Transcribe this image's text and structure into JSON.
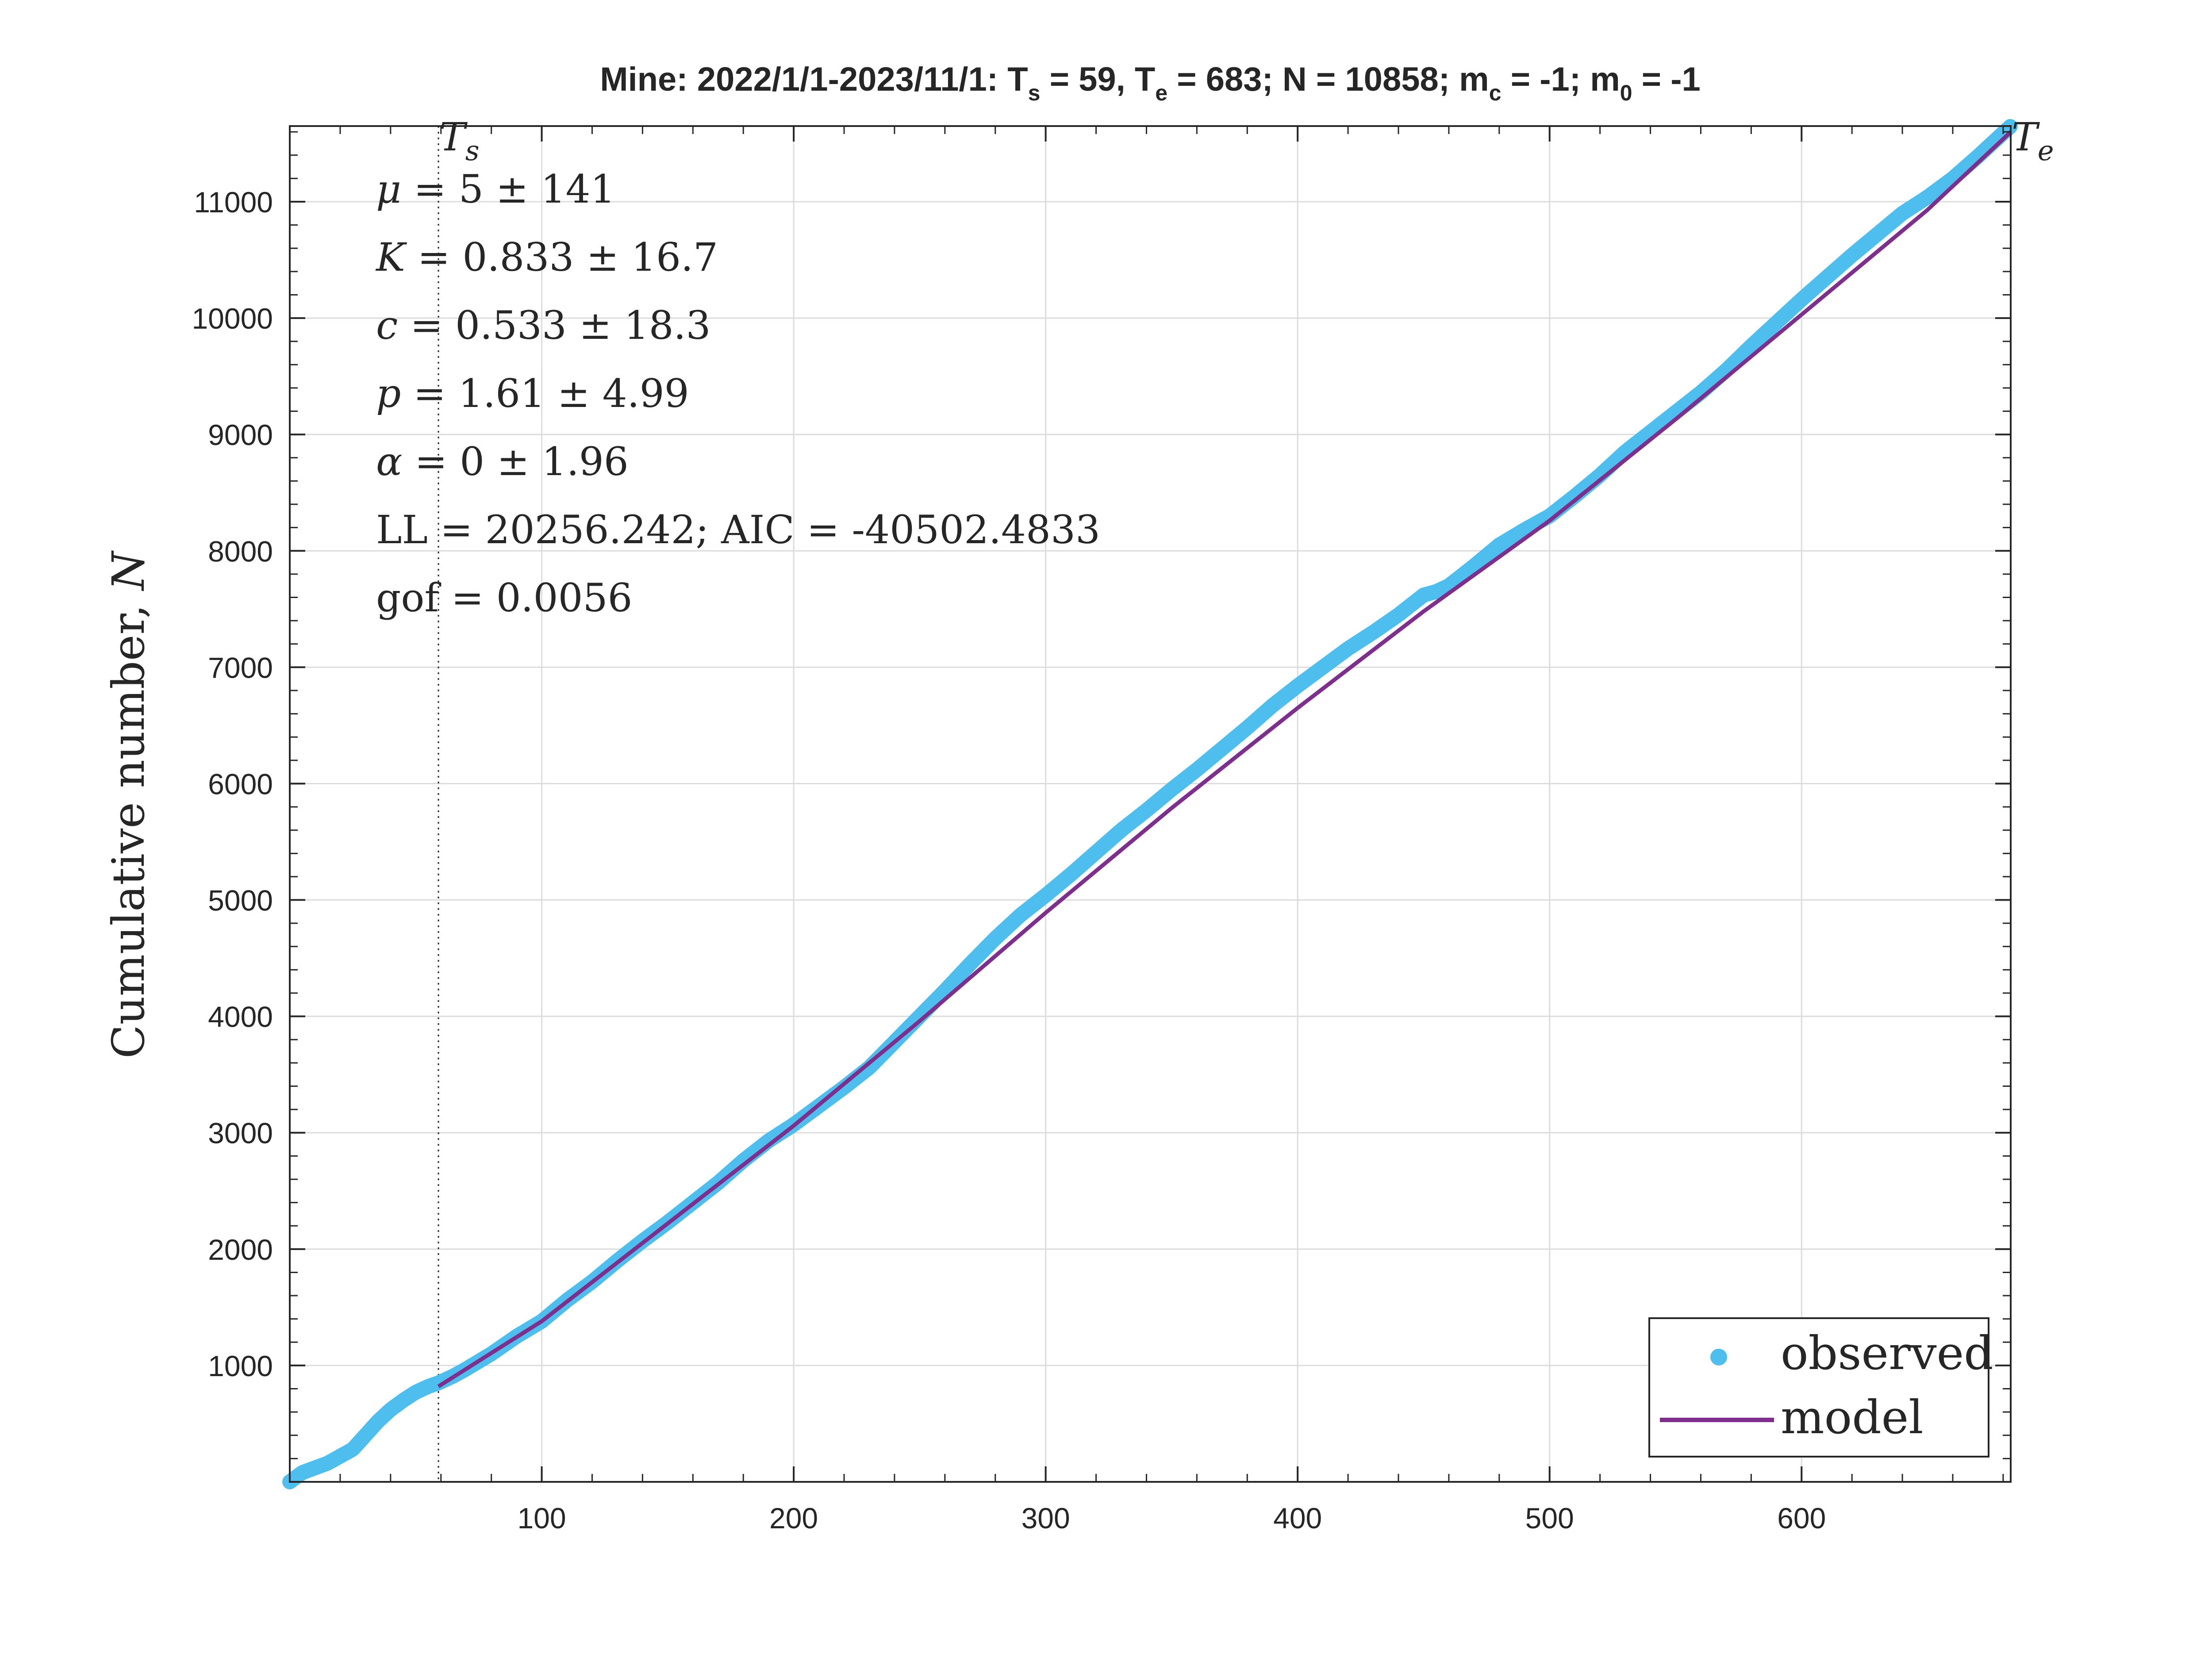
{
  "chart_data": {
    "type": "line",
    "title": {
      "prefix": "Mine: 2022/1/1-2023/11/1: T",
      "ts_sub": "s",
      "ts_val": " = 59, T",
      "te_sub": "e",
      "te_val": " = 683; N = 10858; m",
      "mc_sub": "c",
      "mc_val": " = -1; m",
      "m0_sub": "0",
      "m0_val": " = -1"
    },
    "xlabel": "",
    "ylabel": {
      "main": "Cumulative number, ",
      "var": "N"
    },
    "xlim": [
      0,
      683
    ],
    "ylim": [
      0,
      11650
    ],
    "x_ticks": [
      100,
      200,
      300,
      400,
      500,
      600
    ],
    "y_ticks": [
      1000,
      2000,
      3000,
      4000,
      5000,
      6000,
      7000,
      8000,
      9000,
      10000,
      11000
    ],
    "grid": true,
    "vlines": [
      {
        "x": 59,
        "label": "T",
        "label_sub": "s",
        "style": "dotted"
      }
    ],
    "end_label": {
      "label": "T",
      "label_sub": "e"
    },
    "annotations": [
      {
        "sym": "μ",
        "rest": " = 5 ± 141"
      },
      {
        "sym": "K",
        "rest": " = 0.833 ± 16.7"
      },
      {
        "sym": "c",
        "rest": " = 0.533 ± 18.3"
      },
      {
        "sym": "p",
        "rest": " = 1.61 ± 4.99"
      },
      {
        "sym": "α",
        "rest": " = 0 ± 1.96"
      },
      {
        "sym": "",
        "rest": "LL = 20256.242; AIC = -40502.4833"
      },
      {
        "sym": "",
        "rest": "gof = 0.0056"
      }
    ],
    "legend_position": "bottom-right",
    "series": [
      {
        "name": "observed",
        "style": "markers",
        "color": "#4DBEEE",
        "x": [
          0,
          5,
          10,
          15,
          20,
          25,
          30,
          35,
          40,
          45,
          50,
          55,
          59,
          65,
          70,
          80,
          90,
          100,
          110,
          120,
          130,
          140,
          150,
          160,
          170,
          180,
          190,
          200,
          210,
          220,
          230,
          240,
          250,
          260,
          270,
          280,
          290,
          300,
          310,
          320,
          330,
          340,
          350,
          360,
          370,
          380,
          390,
          400,
          410,
          420,
          430,
          440,
          450,
          455,
          460,
          470,
          480,
          490,
          500,
          510,
          520,
          530,
          540,
          550,
          560,
          570,
          580,
          590,
          600,
          610,
          620,
          630,
          640,
          650,
          660,
          670,
          683
        ],
        "y": [
          0,
          80,
          120,
          160,
          220,
          280,
          400,
          520,
          620,
          700,
          770,
          820,
          850,
          910,
          970,
          1100,
          1250,
          1380,
          1560,
          1720,
          1900,
          2070,
          2230,
          2400,
          2570,
          2760,
          2930,
          3070,
          3230,
          3390,
          3560,
          3780,
          4000,
          4220,
          4450,
          4670,
          4870,
          5040,
          5220,
          5410,
          5600,
          5770,
          5950,
          6120,
          6300,
          6480,
          6670,
          6840,
          7000,
          7160,
          7300,
          7450,
          7620,
          7650,
          7700,
          7870,
          8050,
          8180,
          8300,
          8470,
          8650,
          8850,
          9020,
          9190,
          9360,
          9550,
          9760,
          9960,
          10160,
          10350,
          10540,
          10720,
          10900,
          11040,
          11200,
          11390,
          11650
        ]
      },
      {
        "name": "model",
        "style": "line",
        "color": "#7E2F8E",
        "x": [
          59,
          100,
          150,
          200,
          250,
          300,
          350,
          400,
          450,
          500,
          550,
          600,
          650,
          683
        ],
        "y": [
          820,
          1380,
          2220,
          3060,
          3960,
          4890,
          5790,
          6650,
          7480,
          8260,
          9130,
          10030,
          10930,
          11600
        ]
      }
    ]
  }
}
